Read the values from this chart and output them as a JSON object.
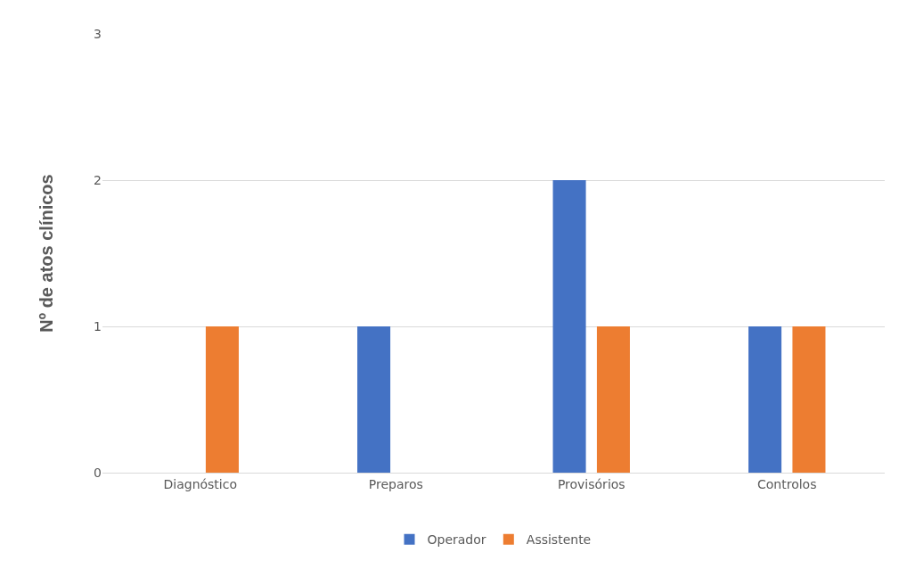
{
  "chart_data": {
    "type": "bar",
    "ylabel": "Nº de atos clínicos",
    "categories": [
      "Diagnóstico",
      "Preparos",
      "Provisórios",
      "Controlos"
    ],
    "series": [
      {
        "name": "Operador",
        "color": "#4472c4",
        "values": [
          0,
          1,
          2,
          1
        ]
      },
      {
        "name": "Assistente",
        "color": "#ed7d31",
        "values": [
          1,
          0,
          1,
          1
        ]
      }
    ],
    "ylim": [
      0,
      3
    ],
    "yticks": [
      0,
      1,
      2,
      3
    ],
    "grid": "y",
    "legend": "bottom"
  }
}
